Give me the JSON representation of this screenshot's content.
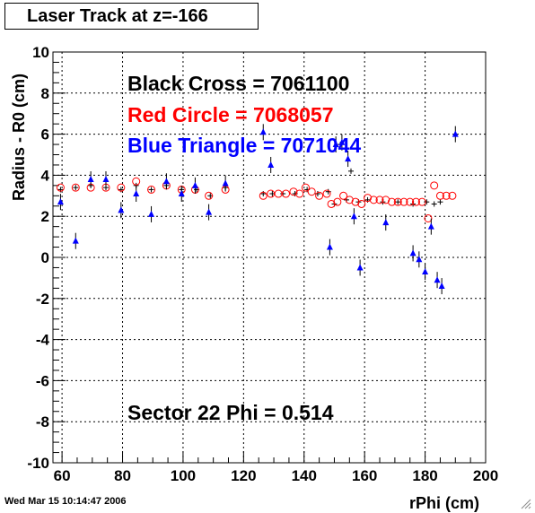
{
  "canvas": {
    "title": "Laser Track at z=-166",
    "timestamp": "Wed Mar 15 10:14:47 2006"
  },
  "chart_data": {
    "type": "scatter",
    "xlabel": "rPhi (cm)",
    "ylabel": "Radius - R0 (cm)",
    "xlim": [
      57,
      200
    ],
    "ylim": [
      -10,
      10
    ],
    "xticks": [
      "60",
      "80",
      "100",
      "120",
      "140",
      "160",
      "180",
      "200"
    ],
    "yticks": [
      "-10",
      "-8",
      "-6",
      "-4",
      "-2",
      "0",
      "2",
      "4",
      "6",
      "8",
      "10"
    ],
    "grid": true,
    "annotations": [
      {
        "text": "Black Cross  = 7061100",
        "color": "#000000"
      },
      {
        "text": "Red Circle = 7068057",
        "color": "#ff0000"
      },
      {
        "text": "Blue Triangle = 7071044",
        "color": "#0000ff"
      },
      {
        "text": "Sector 22 Phi = 0.514",
        "color": "#000000"
      }
    ],
    "series": [
      {
        "marker": "cross",
        "color": "#000000",
        "x": [
          59.5,
          64.5,
          69.5,
          74.5,
          79.5,
          84.5,
          89.5,
          94.5,
          99.5,
          104.5,
          109,
          114,
          126.5,
          129.5,
          133,
          137,
          141,
          144.5,
          148,
          150,
          152,
          154,
          155.5,
          158,
          161,
          166,
          171,
          176,
          180.5,
          183,
          185
        ],
        "y": [
          3.3,
          3.4,
          3.5,
          3.4,
          3.3,
          3.5,
          3.3,
          3.5,
          3.3,
          3.3,
          3.0,
          3.4,
          3.1,
          3.1,
          3.1,
          3.1,
          3.3,
          3.1,
          3.2,
          2.6,
          5.5,
          2.8,
          4.2,
          2.7,
          2.8,
          2.7,
          2.7,
          2.6,
          2.7,
          2.6,
          2.7
        ]
      },
      {
        "marker": "circle",
        "color": "#ff0000",
        "x": [
          59.5,
          64.5,
          69.5,
          74.5,
          79.5,
          84.5,
          89.5,
          94.5,
          99.5,
          104,
          108.5,
          114,
          126.5,
          129,
          131.5,
          134,
          136.5,
          138.5,
          140.5,
          142.5,
          145,
          147.5,
          149,
          151,
          153,
          155,
          157,
          159,
          161,
          163,
          165,
          167,
          169,
          171,
          173,
          175,
          177,
          179,
          181,
          183,
          185,
          187,
          189
        ],
        "y": [
          3.4,
          3.4,
          3.4,
          3.4,
          3.4,
          3.7,
          3.3,
          3.5,
          3.3,
          3.3,
          3.0,
          3.3,
          3.0,
          3.1,
          3.1,
          3.1,
          3.2,
          3.1,
          3.4,
          3.2,
          3.0,
          3.1,
          2.6,
          2.7,
          3.0,
          2.8,
          2.7,
          2.6,
          2.9,
          2.8,
          2.8,
          2.8,
          2.7,
          2.7,
          2.7,
          2.7,
          2.7,
          2.7,
          1.9,
          3.5,
          3.0,
          3.0,
          3.0
        ]
      },
      {
        "marker": "triangle",
        "color": "#0000ff",
        "x": [
          59.5,
          64.5,
          69.5,
          74.5,
          79.5,
          84.5,
          89.5,
          94.5,
          99.5,
          104,
          108.5,
          114,
          126.5,
          129,
          148.5,
          150.5,
          152.5,
          154.5,
          156.5,
          158.5,
          167,
          176,
          178,
          180,
          182,
          184,
          185.5,
          190
        ],
        "y": [
          2.7,
          0.8,
          3.8,
          3.8,
          2.3,
          3.1,
          2.1,
          3.7,
          3.1,
          3.5,
          2.2,
          3.6,
          6.1,
          4.5,
          0.5,
          5.5,
          5.6,
          4.8,
          2.0,
          -0.5,
          1.7,
          0.2,
          -0.1,
          -0.7,
          1.5,
          -1.1,
          -1.4,
          6.0
        ]
      }
    ]
  }
}
